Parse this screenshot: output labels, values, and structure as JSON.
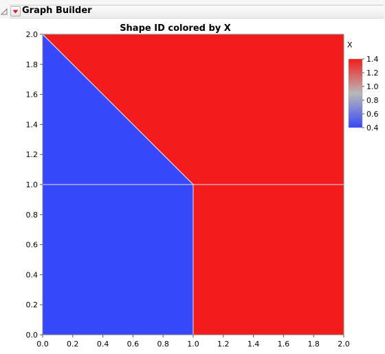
{
  "window": {
    "title": "Graph Builder"
  },
  "colors": {
    "red": "#f21c1c",
    "blue": "#3648f7",
    "menu_arrow": "#d21a1a"
  },
  "chart_data": {
    "type": "heatmap",
    "title": "Shape ID colored by X",
    "xlabel": "",
    "ylabel": "",
    "xlim": [
      0.0,
      2.0
    ],
    "ylim": [
      0.0,
      2.0
    ],
    "xticks": [
      "0.0",
      "0.2",
      "0.4",
      "0.6",
      "0.8",
      "1.0",
      "1.2",
      "1.4",
      "1.6",
      "1.8",
      "2.0"
    ],
    "yticks": [
      "0.0",
      "0.2",
      "0.4",
      "0.6",
      "0.8",
      "1.0",
      "1.2",
      "1.4",
      "1.6",
      "1.8",
      "2.0"
    ],
    "shapes": [
      {
        "color": "#f21c1c",
        "points": [
          [
            0,
            2
          ],
          [
            2,
            2
          ],
          [
            2,
            1
          ],
          [
            1,
            1
          ]
        ]
      },
      {
        "color": "#3648f7",
        "points": [
          [
            0,
            2
          ],
          [
            1,
            1
          ],
          [
            0,
            1
          ]
        ]
      },
      {
        "color": "#3648f7",
        "points": [
          [
            0,
            0
          ],
          [
            1,
            0
          ],
          [
            1,
            1
          ],
          [
            0,
            1
          ]
        ]
      },
      {
        "color": "#f21c1c",
        "points": [
          [
            1,
            0
          ],
          [
            2,
            0
          ],
          [
            2,
            1
          ],
          [
            1,
            1
          ]
        ]
      }
    ],
    "legend": {
      "title": "X",
      "placement": "right",
      "range": [
        0.4,
        1.4
      ],
      "ticks": [
        "1.4",
        "1.2",
        "1.0",
        "0.8",
        "0.6",
        "0.4"
      ],
      "gradient": [
        "#3648f7",
        "#b9b9b9",
        "#f21c1c"
      ]
    },
    "grid": false
  }
}
